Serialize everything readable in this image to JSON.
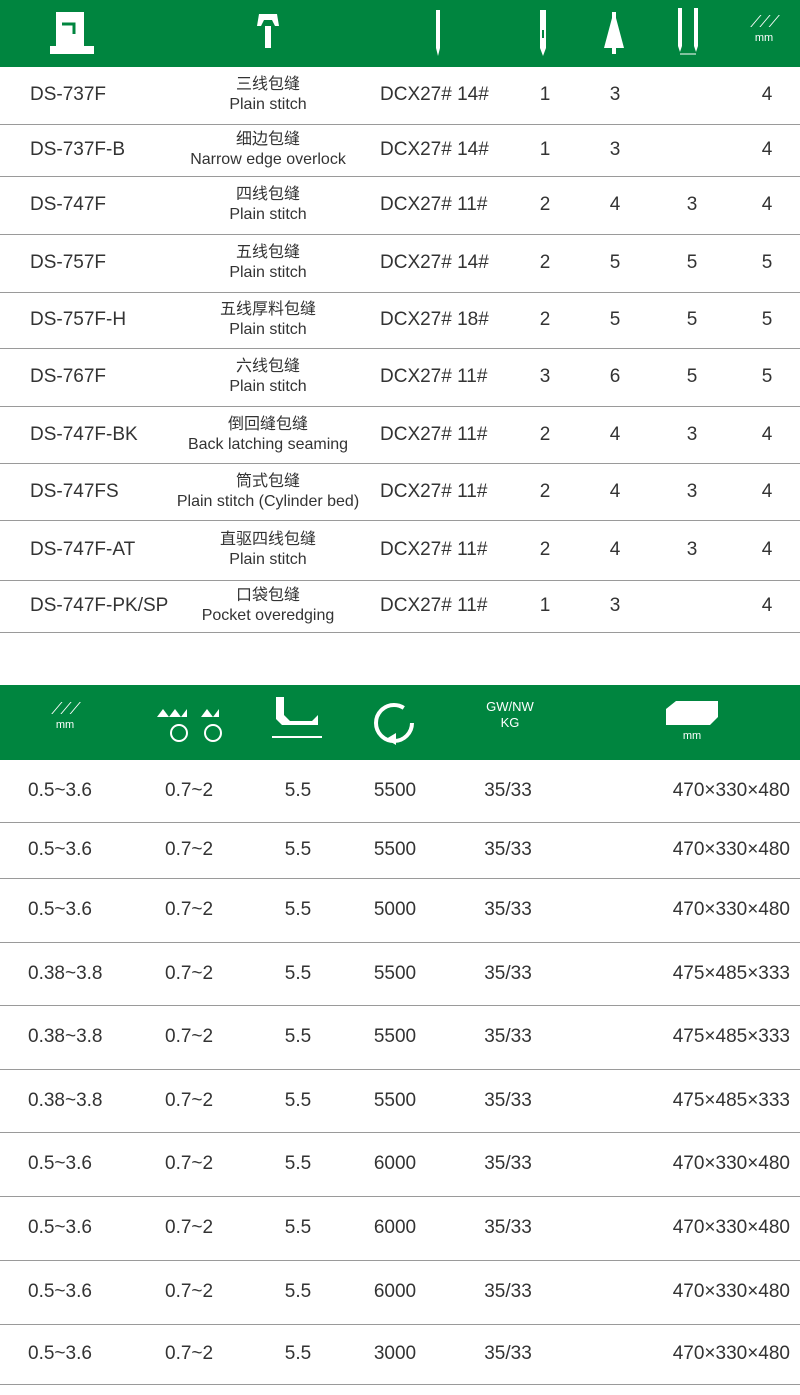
{
  "colors": {
    "header_bg": "#00853f",
    "divider": "#9a9a9a"
  },
  "table1": {
    "header_icons": [
      "overlock-machine-icon",
      "presser-foot-icon",
      "needle-icon",
      "needle-count-icon",
      "thread-cone-icon",
      "needle-gauge-icon",
      "stitch-width-icon"
    ],
    "header_unit": "mm",
    "rows": [
      {
        "model": "DS-737F",
        "cn": "三线包缝",
        "en": "Plain stitch",
        "needle": "DCX27# 14#",
        "n": "1",
        "t": "3",
        "g": "",
        "w": "4"
      },
      {
        "model": "DS-737F-B",
        "cn": "细边包缝",
        "en": "Narrow edge overlock",
        "needle": "DCX27# 14#",
        "n": "1",
        "t": "3",
        "g": "",
        "w": "4"
      },
      {
        "model": "DS-747F",
        "cn": "四线包缝",
        "en": "Plain stitch",
        "needle": "DCX27# 11#",
        "n": "2",
        "t": "4",
        "g": "3",
        "w": "4"
      },
      {
        "model": "DS-757F",
        "cn": "五线包缝",
        "en": "Plain stitch",
        "needle": "DCX27# 14#",
        "n": "2",
        "t": "5",
        "g": "5",
        "w": "5"
      },
      {
        "model": "DS-757F-H",
        "cn": "五线厚料包缝",
        "en": "Plain stitch",
        "needle": "DCX27# 18#",
        "n": "2",
        "t": "5",
        "g": "5",
        "w": "5"
      },
      {
        "model": "DS-767F",
        "cn": "六线包缝",
        "en": "Plain stitch",
        "needle": "DCX27# 11#",
        "n": "3",
        "t": "6",
        "g": "5",
        "w": "5"
      },
      {
        "model": "DS-747F-BK",
        "cn": "倒回缝包缝",
        "en": "Back latching seaming",
        "needle": "DCX27# 11#",
        "n": "2",
        "t": "4",
        "g": "3",
        "w": "4"
      },
      {
        "model": "DS-747FS",
        "cn": "筒式包缝",
        "en": "Plain stitch (Cylinder bed)",
        "needle": "DCX27# 11#",
        "n": "2",
        "t": "4",
        "g": "3",
        "w": "4"
      },
      {
        "model": "DS-747F-AT",
        "cn": "直驱四线包缝",
        "en": "Plain stitch",
        "needle": "DCX27# 11#",
        "n": "2",
        "t": "4",
        "g": "3",
        "w": "4"
      },
      {
        "model": "DS-747F-PK/SP",
        "cn": "口袋包缝",
        "en": "Pocket overedging",
        "needle": "DCX27# 11#",
        "n": "1",
        "t": "3",
        "g": "",
        "w": "4"
      }
    ]
  },
  "table2": {
    "header_icons": [
      "stitch-length-icon",
      "differential-feed-icon",
      "presser-foot-lift-icon",
      "speed-rotation-icon",
      "weight-label",
      "package-box-icon"
    ],
    "header_unit": "mm",
    "weight_label_gw": "GW/",
    "weight_label_nw": "NW",
    "weight_label_kg": "KG",
    "rows": [
      [
        "0.5~3.6",
        "0.7~2",
        "5.5",
        "5500",
        "35/33",
        "470×330×480"
      ],
      [
        "0.5~3.6",
        "0.7~2",
        "5.5",
        "5500",
        "35/33",
        "470×330×480"
      ],
      [
        "0.5~3.6",
        "0.7~2",
        "5.5",
        "5000",
        "35/33",
        "470×330×480"
      ],
      [
        "0.38~3.8",
        "0.7~2",
        "5.5",
        "5500",
        "35/33",
        "475×485×333"
      ],
      [
        "0.38~3.8",
        "0.7~2",
        "5.5",
        "5500",
        "35/33",
        "475×485×333"
      ],
      [
        "0.38~3.8",
        "0.7~2",
        "5.5",
        "5500",
        "35/33",
        "475×485×333"
      ],
      [
        "0.5~3.6",
        "0.7~2",
        "5.5",
        "6000",
        "35/33",
        "470×330×480"
      ],
      [
        "0.5~3.6",
        "0.7~2",
        "5.5",
        "6000",
        "35/33",
        "470×330×480"
      ],
      [
        "0.5~3.6",
        "0.7~2",
        "5.5",
        "6000",
        "35/33",
        "470×330×480"
      ],
      [
        "0.5~3.6",
        "0.7~2",
        "5.5",
        "3000",
        "35/33",
        "470×330×480"
      ]
    ]
  }
}
